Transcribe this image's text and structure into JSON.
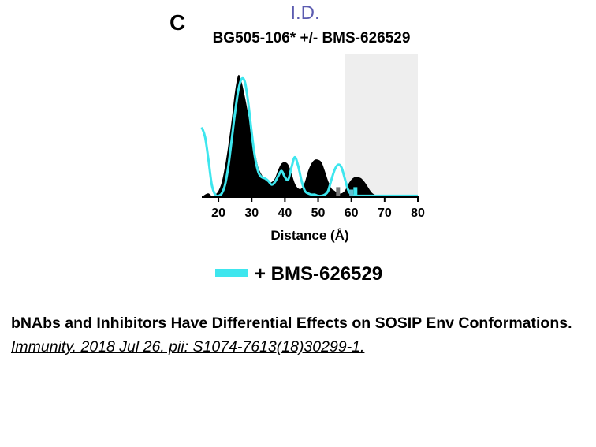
{
  "figure": {
    "panel_letter": "C",
    "header": "I.D.",
    "header_color": "#5b5bb0",
    "subtitle": "BG505-106* +/- BMS-626529"
  },
  "chart_data": {
    "type": "area",
    "title": "BG505-106* +/- BMS-626529",
    "xlabel": "Distance (Å)",
    "ylabel": "",
    "xlim": [
      15,
      80
    ],
    "ylim": [
      0,
      1.0
    ],
    "x_ticks": [
      "20",
      "30",
      "40",
      "50",
      "60",
      "70",
      "80"
    ],
    "x_tick_values": [
      20,
      30,
      40,
      50,
      60,
      70,
      80
    ],
    "grid": false,
    "shaded_region": {
      "x_range": [
        58,
        80
      ],
      "color": "#eeeeee"
    },
    "legend_position": "bottom-center",
    "legend": [
      {
        "label": "+ BMS-626529",
        "color": "#3ee6ee"
      }
    ],
    "series": [
      {
        "style": "filled",
        "color": "#000000",
        "x": [
          15,
          16,
          17,
          18,
          19,
          20,
          21,
          22,
          23,
          24,
          25,
          26,
          27,
          28,
          29,
          30,
          31,
          32,
          33,
          34,
          35,
          36,
          37,
          38,
          39,
          40,
          41,
          42,
          43,
          44,
          45,
          46,
          47,
          48,
          49,
          50,
          51,
          52,
          53,
          54,
          55,
          56,
          57,
          58,
          59,
          60,
          61,
          62,
          63,
          64,
          65,
          66,
          67,
          68,
          70,
          80
        ],
        "values": [
          0.0,
          0.02,
          0.03,
          0.01,
          0.02,
          0.05,
          0.12,
          0.25,
          0.42,
          0.62,
          0.85,
          0.98,
          0.92,
          0.8,
          0.66,
          0.5,
          0.36,
          0.24,
          0.18,
          0.14,
          0.12,
          0.12,
          0.15,
          0.22,
          0.27,
          0.28,
          0.26,
          0.19,
          0.11,
          0.07,
          0.07,
          0.12,
          0.21,
          0.27,
          0.3,
          0.3,
          0.28,
          0.21,
          0.13,
          0.07,
          0.05,
          0.03,
          0.03,
          0.05,
          0.1,
          0.14,
          0.16,
          0.16,
          0.15,
          0.12,
          0.08,
          0.04,
          0.02,
          0.01,
          0.0,
          0.0
        ]
      },
      {
        "name": "+ BMS-626529",
        "style": "line",
        "color": "#3ee6ee",
        "x": [
          15,
          16,
          17,
          18,
          19,
          20,
          21,
          22,
          23,
          24,
          25,
          26,
          27,
          28,
          29,
          30,
          31,
          32,
          33,
          34,
          35,
          36,
          37,
          38,
          39,
          40,
          41,
          42,
          43,
          44,
          45,
          46,
          47,
          48,
          49,
          50,
          51,
          52,
          53,
          54,
          55,
          56,
          57,
          58,
          59,
          60,
          61,
          62,
          63,
          64,
          65,
          66,
          67,
          68,
          70,
          75,
          80
        ],
        "values": [
          0.56,
          0.48,
          0.3,
          0.1,
          0.02,
          0.01,
          0.03,
          0.1,
          0.25,
          0.46,
          0.68,
          0.86,
          0.95,
          0.92,
          0.75,
          0.52,
          0.32,
          0.2,
          0.16,
          0.15,
          0.13,
          0.1,
          0.12,
          0.17,
          0.21,
          0.16,
          0.14,
          0.24,
          0.32,
          0.25,
          0.13,
          0.05,
          0.03,
          0.02,
          0.02,
          0.01,
          0.01,
          0.02,
          0.05,
          0.14,
          0.22,
          0.26,
          0.24,
          0.15,
          0.06,
          0.02,
          0.01,
          0.01,
          0.01,
          0.01,
          0.01,
          0.01,
          0.01,
          0.01,
          0.01,
          0.01,
          0.01
        ]
      }
    ],
    "markers": [
      {
        "x": 56.0,
        "value": 0.08,
        "color": "#777777"
      },
      {
        "x": 60.0,
        "value": 0.06,
        "color": "#5dbfd0"
      },
      {
        "x": 61.2,
        "value": 0.08,
        "color": "#3ee6ee"
      }
    ]
  },
  "caption": {
    "title": "bNAbs and Inhibitors Have Differential Effects on SOSIP Env Conformations.",
    "citation": "Immunity. 2018 Jul 26. pii: S1074-7613(18)30299-1."
  }
}
